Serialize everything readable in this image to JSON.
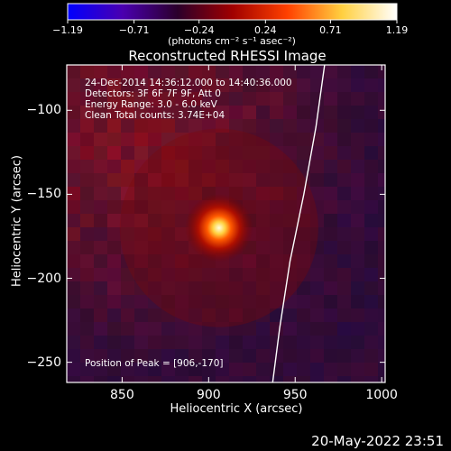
{
  "colorbar": {
    "ticks": [
      "−1.19",
      "−0.71",
      "−0.24",
      "0.24",
      "0.71",
      "1.19"
    ],
    "tick_values": [
      -1.19,
      -0.71,
      -0.24,
      0.24,
      0.71,
      1.19
    ],
    "range": [
      -1.19,
      1.19
    ],
    "units": "(photons cm⁻² s⁻¹ asec⁻²)",
    "colors": [
      "#0000ff",
      "#4a00b0",
      "#2b002b",
      "#a00000",
      "#ff4000",
      "#ffd040",
      "#ffffff"
    ]
  },
  "info": {
    "time": "24-Dec-2014 14:36:12.000 to 14:40:36.000",
    "detectors": "Detectors: 3F 6F 7F 9F, Att 0",
    "energy": "Energy Range: 3.0 - 6.0 keV",
    "method": "Clean    Total counts: 3.74E+04",
    "peak": "Position of Peak = [906,-170]"
  },
  "footer": {
    "timestamp": "20-May-2022 23:51"
  },
  "chart_data": {
    "type": "heatmap",
    "title": "Reconstructed RHESSI Image",
    "xlabel": "Heliocentric X (arcsec)",
    "ylabel": "Heliocentric Y (arcsec)",
    "xlim": [
      818,
      1002
    ],
    "ylim": [
      -262,
      -73
    ],
    "x_ticks": [
      850,
      900,
      950,
      1000
    ],
    "y_ticks": [
      -100,
      -150,
      -200,
      -250
    ],
    "x_tick_labels": [
      "850",
      "900",
      "950",
      "1000"
    ],
    "y_tick_labels": [
      "−100",
      "−150",
      "−200",
      "−250"
    ],
    "peak": {
      "x": 906,
      "y": -170,
      "value": 1.19
    },
    "limb": [
      [
        967,
        -73
      ],
      [
        962,
        -110
      ],
      [
        955,
        -150
      ],
      [
        947,
        -190
      ],
      [
        941,
        -230
      ],
      [
        937,
        -262
      ]
    ],
    "limb_color": "#ffffff"
  }
}
